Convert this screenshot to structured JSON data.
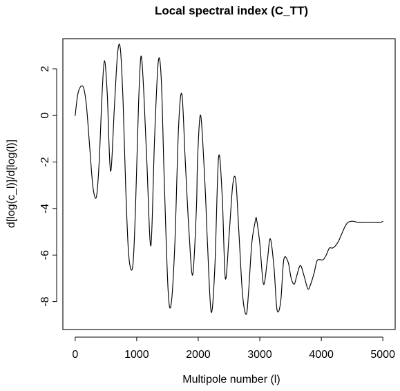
{
  "chart_data": {
    "type": "line",
    "title": "Local spectral index (C_TT)",
    "xlabel": "Multipole number (l)",
    "ylabel": "d[log(c_l)]/d[log(l)]",
    "xlim": [
      -200,
      5200
    ],
    "ylim": [
      -9.2,
      3.3
    ],
    "xticks": [
      0,
      1000,
      2000,
      3000,
      4000,
      5000
    ],
    "yticks": [
      2,
      0,
      -2,
      -4,
      -6,
      -8
    ],
    "xtick_labels": [
      "0",
      "1000",
      "2000",
      "3000",
      "4000",
      "5000"
    ],
    "ytick_labels": [
      "2",
      "0",
      "-2",
      "-4",
      "-6",
      "-8"
    ],
    "grid": false,
    "legend": "none",
    "series": [
      {
        "color": "#000000",
        "x": [
          0,
          50,
          125,
          180,
          240,
          290,
          345,
          390,
          435,
          475,
          520,
          575,
          640,
          690,
          735,
          780,
          820,
          870,
          935,
          980,
          1030,
          1070,
          1115,
          1165,
          1230,
          1290,
          1350,
          1400,
          1450,
          1510,
          1560,
          1620,
          1680,
          1735,
          1790,
          1850,
          1910,
          1970,
          1990,
          2040,
          2110,
          2150,
          2210,
          2270,
          2330,
          2390,
          2440,
          2500,
          2560,
          2610,
          2660,
          2720,
          2780,
          2820,
          2870,
          2930,
          2950,
          3000,
          3060,
          3120,
          3170,
          3230,
          3280,
          3340,
          3390,
          3460,
          3510,
          3560,
          3600,
          3660,
          3720,
          3780,
          3820,
          3880,
          3930,
          3980,
          4030,
          4080,
          4130,
          4180,
          4230,
          4280,
          4330,
          4380,
          4430,
          4480,
          4530,
          4600,
          4660,
          4720,
          4780,
          4840,
          4900,
          4960,
          5000
        ],
        "y": [
          0.0,
          1.0,
          1.25,
          0.5,
          -1.5,
          -3.1,
          -3.5,
          -2.0,
          0.8,
          2.35,
          1.0,
          -2.4,
          0.5,
          2.7,
          2.85,
          0.5,
          -3.0,
          -6.0,
          -6.5,
          -4.0,
          0.5,
          2.55,
          1.0,
          -2.0,
          -5.6,
          -1.0,
          2.3,
          1.5,
          -3.0,
          -7.5,
          -8.1,
          -5.5,
          -0.5,
          0.9,
          -2.0,
          -5.0,
          -6.85,
          -4.0,
          -1.8,
          0.0,
          -3.0,
          -5.5,
          -8.45,
          -6.5,
          -1.8,
          -3.5,
          -7.0,
          -5.2,
          -3.0,
          -2.8,
          -5.0,
          -7.7,
          -8.55,
          -7.5,
          -5.5,
          -4.5,
          -4.5,
          -5.5,
          -7.25,
          -6.3,
          -5.3,
          -6.5,
          -8.35,
          -8.0,
          -6.2,
          -6.3,
          -7.0,
          -7.25,
          -6.9,
          -6.45,
          -6.9,
          -7.45,
          -7.3,
          -6.8,
          -6.25,
          -6.2,
          -6.2,
          -6.0,
          -5.7,
          -5.7,
          -5.6,
          -5.4,
          -5.1,
          -4.8,
          -4.6,
          -4.55,
          -4.55,
          -4.6,
          -4.6,
          -4.6,
          -4.6,
          -4.6,
          -4.6,
          -4.6,
          -4.55
        ]
      }
    ]
  }
}
